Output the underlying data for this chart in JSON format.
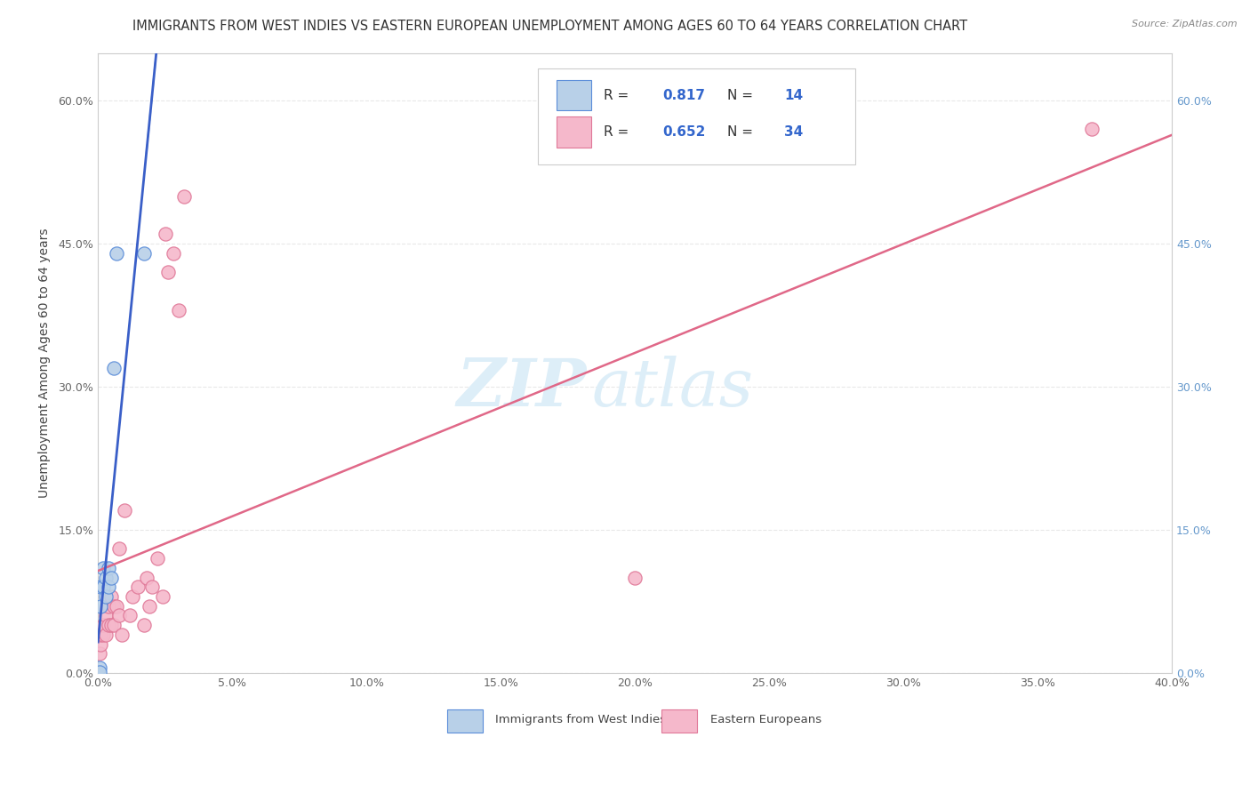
{
  "title": "IMMIGRANTS FROM WEST INDIES VS EASTERN EUROPEAN UNEMPLOYMENT AMONG AGES 60 TO 64 YEARS CORRELATION CHART",
  "source": "Source: ZipAtlas.com",
  "ylabel": "Unemployment Among Ages 60 to 64 years",
  "watermark_zip": "ZIP",
  "watermark_atlas": "atlas",
  "blue_label": "Immigrants from West Indies",
  "pink_label": "Eastern Europeans",
  "blue_R": "0.817",
  "blue_N": "14",
  "pink_R": "0.652",
  "pink_N": "34",
  "xlim": [
    0.0,
    0.4
  ],
  "ylim": [
    0.0,
    0.65
  ],
  "xtick_vals": [
    0.0,
    0.05,
    0.1,
    0.15,
    0.2,
    0.25,
    0.3,
    0.35,
    0.4
  ],
  "ytick_vals": [
    0.0,
    0.15,
    0.3,
    0.45,
    0.6
  ],
  "blue_x": [
    0.0005,
    0.001,
    0.001,
    0.002,
    0.002,
    0.003,
    0.003,
    0.004,
    0.004,
    0.005,
    0.006,
    0.007,
    0.017,
    0.0005
  ],
  "blue_y": [
    0.005,
    0.07,
    0.09,
    0.09,
    0.11,
    0.08,
    0.1,
    0.09,
    0.11,
    0.1,
    0.32,
    0.44,
    0.44,
    0.001
  ],
  "pink_x": [
    0.0005,
    0.001,
    0.001,
    0.002,
    0.002,
    0.003,
    0.003,
    0.004,
    0.004,
    0.005,
    0.005,
    0.006,
    0.006,
    0.007,
    0.008,
    0.008,
    0.009,
    0.01,
    0.012,
    0.013,
    0.015,
    0.017,
    0.018,
    0.019,
    0.02,
    0.022,
    0.024,
    0.025,
    0.026,
    0.028,
    0.03,
    0.032,
    0.2,
    0.37
  ],
  "pink_y": [
    0.02,
    0.03,
    0.04,
    0.04,
    0.05,
    0.04,
    0.06,
    0.05,
    0.07,
    0.05,
    0.08,
    0.05,
    0.07,
    0.07,
    0.13,
    0.06,
    0.04,
    0.17,
    0.06,
    0.08,
    0.09,
    0.05,
    0.1,
    0.07,
    0.09,
    0.12,
    0.08,
    0.46,
    0.42,
    0.44,
    0.38,
    0.5,
    0.1,
    0.57
  ],
  "blue_color": "#b8d0e8",
  "blue_edge_color": "#5b8dd9",
  "blue_line_color": "#3a5fc8",
  "blue_dash_color": "#a0c0e0",
  "pink_color": "#f5b8cb",
  "pink_edge_color": "#e07898",
  "pink_line_color": "#e06888",
  "grid_color": "#e8e8e8",
  "bg_color": "#ffffff",
  "right_tick_color": "#6699cc",
  "title_color": "#333333",
  "source_color": "#888888",
  "ylabel_color": "#444444",
  "tick_color": "#666666",
  "watermark_color": "#ddeef8",
  "title_fontsize": 10.5,
  "source_fontsize": 8,
  "ylabel_fontsize": 10,
  "tick_fontsize": 9,
  "legend_fontsize": 11,
  "watermark_zip_size": 54,
  "watermark_atlas_size": 54
}
